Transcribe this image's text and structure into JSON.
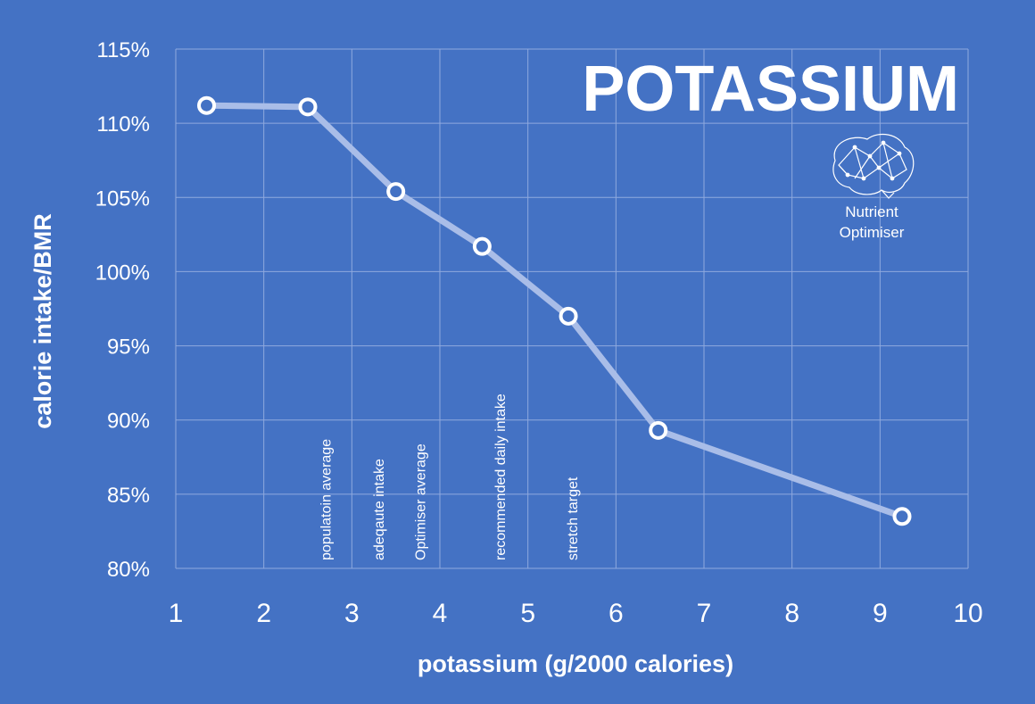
{
  "chart_data": {
    "type": "line",
    "title": "POTASSIUM",
    "xlabel": "potassium (g/2000 calories)",
    "ylabel": "calorie intake/BMR",
    "xlim": [
      1,
      10
    ],
    "ylim": [
      0.8,
      1.15
    ],
    "x_ticks": [
      "1",
      "2",
      "3",
      "4",
      "5",
      "6",
      "7",
      "8",
      "9",
      "10"
    ],
    "y_ticks": [
      "80%",
      "85%",
      "90%",
      "95%",
      "100%",
      "105%",
      "110%",
      "115%"
    ],
    "grid": true,
    "series": [
      {
        "x": [
          1.35,
          2.5,
          3.5,
          4.48,
          5.46,
          6.48,
          9.25
        ],
        "y": [
          1.112,
          1.111,
          1.054,
          1.017,
          0.97,
          0.893,
          0.835
        ]
      }
    ],
    "annotations": [
      {
        "text": "populatoin average",
        "x": 2.7
      },
      {
        "text": "adeqaute intake",
        "x": 3.3
      },
      {
        "text": "Optimiser average",
        "x": 3.77
      },
      {
        "text": "recommended daily intake",
        "x": 4.68
      },
      {
        "text": "stretch target",
        "x": 5.5
      }
    ],
    "colors": {
      "background": "#4472c4",
      "line": "#a9bde8",
      "marker_fill": "#4472c4",
      "marker_stroke": "#ffffff",
      "grid": "#8fa9de"
    }
  },
  "logo": {
    "line1": "Nutrient",
    "line2": "Optimiser",
    "icon": "brain-network-icon"
  }
}
